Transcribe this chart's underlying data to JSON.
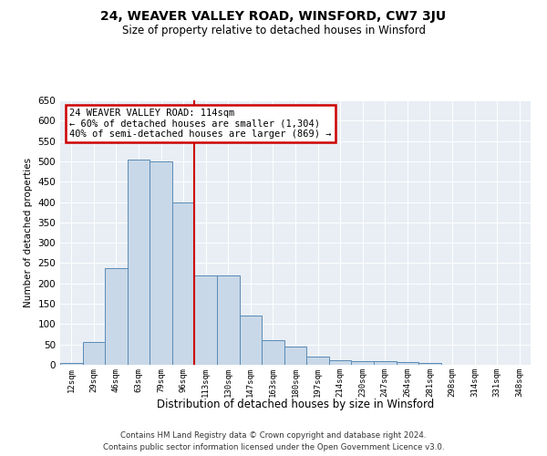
{
  "title": "24, WEAVER VALLEY ROAD, WINSFORD, CW7 3JU",
  "subtitle": "Size of property relative to detached houses in Winsford",
  "xlabel": "Distribution of detached houses by size in Winsford",
  "ylabel": "Number of detached properties",
  "bin_labels": [
    "12sqm",
    "29sqm",
    "46sqm",
    "63sqm",
    "79sqm",
    "96sqm",
    "113sqm",
    "130sqm",
    "147sqm",
    "163sqm",
    "180sqm",
    "197sqm",
    "214sqm",
    "230sqm",
    "247sqm",
    "264sqm",
    "281sqm",
    "298sqm",
    "314sqm",
    "331sqm",
    "348sqm"
  ],
  "bar_values": [
    5,
    55,
    237,
    505,
    500,
    400,
    220,
    220,
    120,
    60,
    45,
    20,
    12,
    10,
    8,
    6,
    4,
    1,
    0,
    1,
    0
  ],
  "bar_color": "#c8d8e8",
  "bar_edge_color": "#5a8ab5",
  "vline_bin_index": 6,
  "vline_color": "#cc0000",
  "annotation_line1": "24 WEAVER VALLEY ROAD: 114sqm",
  "annotation_line2": "← 60% of detached houses are smaller (1,304)",
  "annotation_line3": "40% of semi-detached houses are larger (869) →",
  "annotation_box_color": "#ffffff",
  "annotation_box_edge": "#cc0000",
  "ylim": [
    0,
    650
  ],
  "yticks": [
    0,
    50,
    100,
    150,
    200,
    250,
    300,
    350,
    400,
    450,
    500,
    550,
    600,
    650
  ],
  "bg_color": "#e8eef4",
  "footer_line1": "Contains HM Land Registry data © Crown copyright and database right 2024.",
  "footer_line2": "Contains public sector information licensed under the Open Government Licence v3.0."
}
